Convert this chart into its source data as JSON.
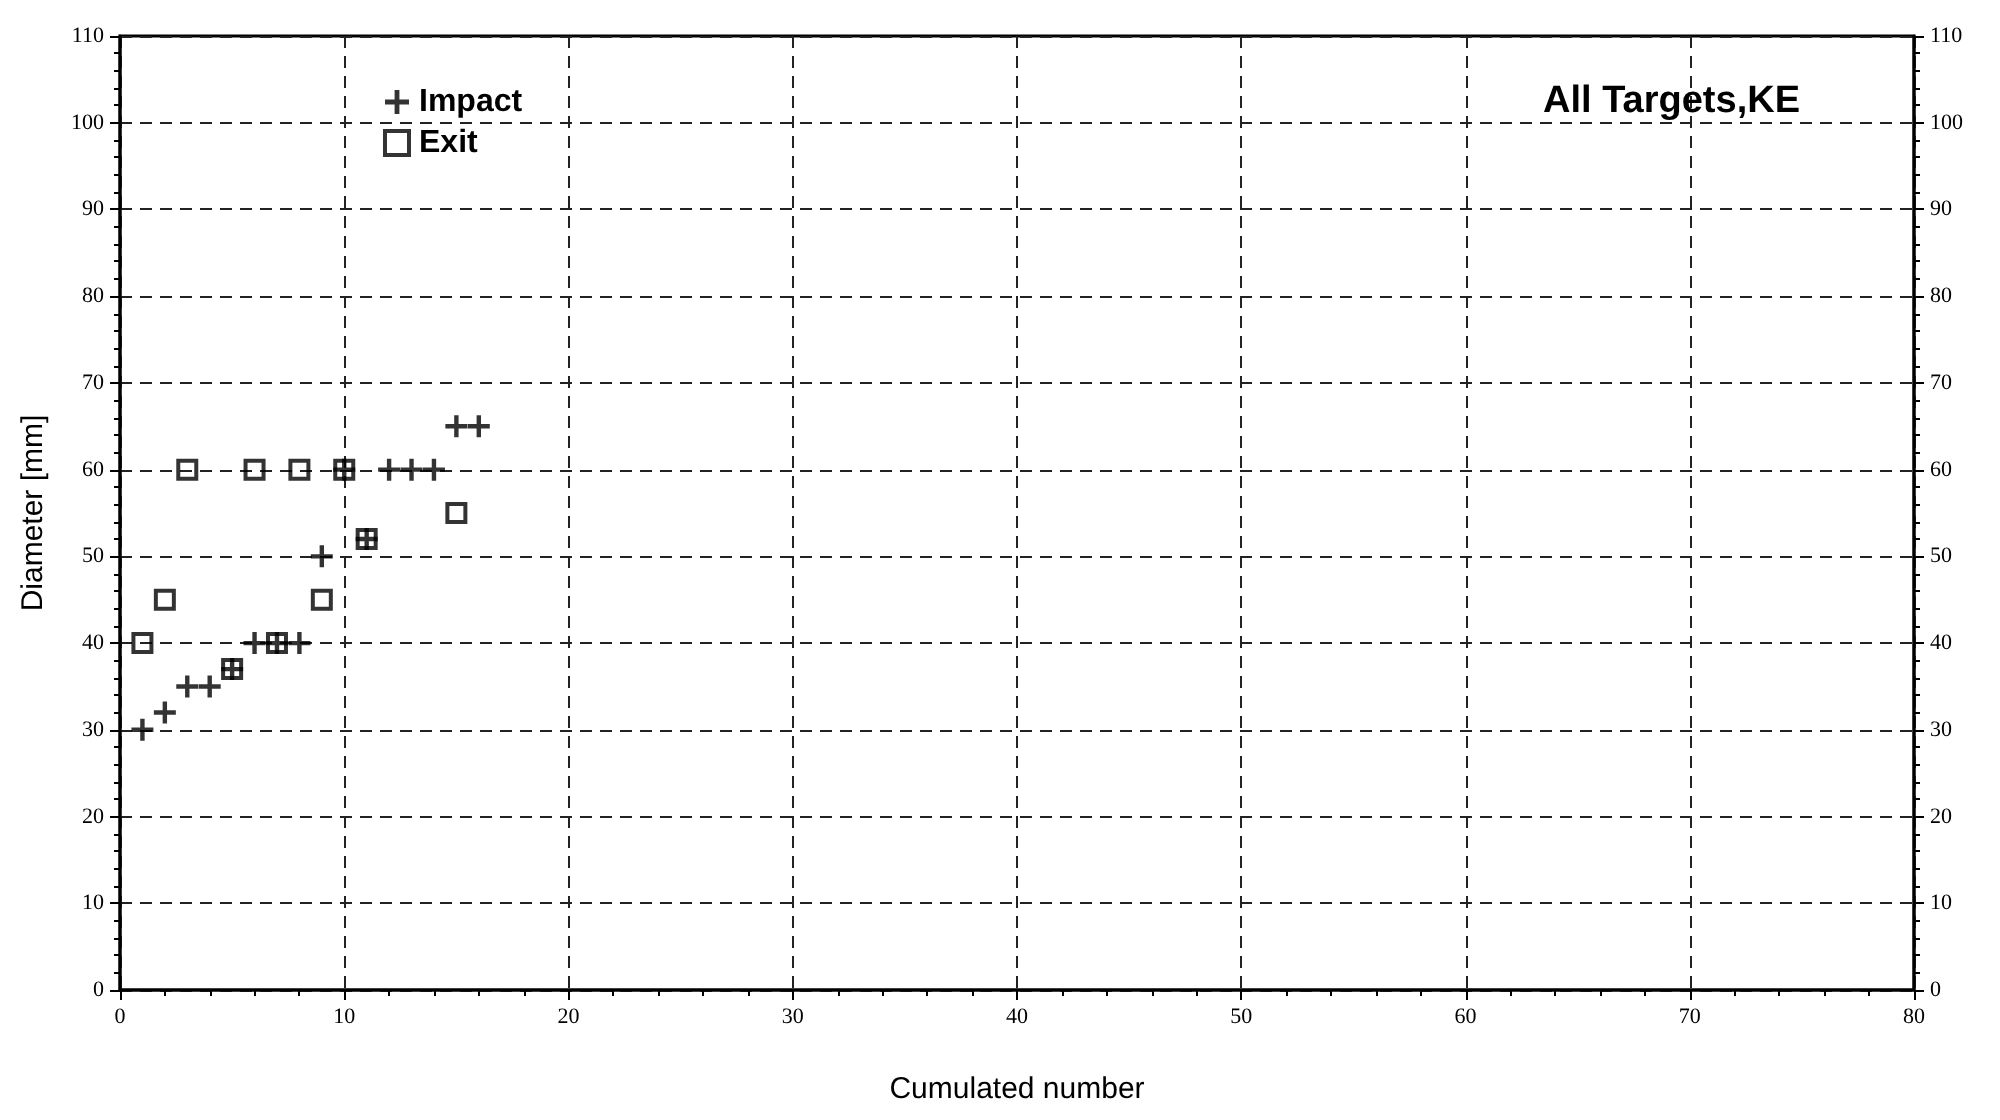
{
  "chart_data": {
    "type": "scatter",
    "title": "All Targets,KE",
    "xlabel": "Cumulated number",
    "ylabel": "Diameter [mm]",
    "series": [
      {
        "name": "Impact",
        "color": "#000000",
        "marker": "cross",
        "x": [
          1,
          2,
          3,
          4,
          5,
          6,
          7,
          8,
          9,
          10,
          11,
          12,
          13,
          14,
          15,
          16
        ],
        "values": [
          30,
          32,
          35,
          35,
          37,
          40,
          40,
          40,
          50,
          60,
          52,
          60,
          60,
          60,
          65,
          65
        ]
      },
      {
        "name": "Exit",
        "color": "#000000",
        "marker": "square",
        "x": [
          1,
          2,
          3,
          5,
          6,
          7,
          8,
          9,
          10,
          11,
          15
        ],
        "values": [
          40,
          45,
          60,
          37,
          60,
          40,
          60,
          45,
          60,
          52,
          55
        ]
      }
    ],
    "xlim": [
      0,
      80
    ],
    "xticks": [
      0,
      10,
      20,
      30,
      40,
      50,
      60,
      70,
      80
    ],
    "ylim": [
      0,
      110
    ],
    "yticks": [
      0,
      10,
      20,
      30,
      40,
      50,
      60,
      70,
      80,
      90,
      100,
      110
    ],
    "y2lim": [
      0,
      110
    ],
    "y2ticks": [
      0,
      10,
      20,
      30,
      40,
      50,
      60,
      70,
      80,
      90,
      100,
      110
    ],
    "grid": true,
    "legend": "top left"
  }
}
